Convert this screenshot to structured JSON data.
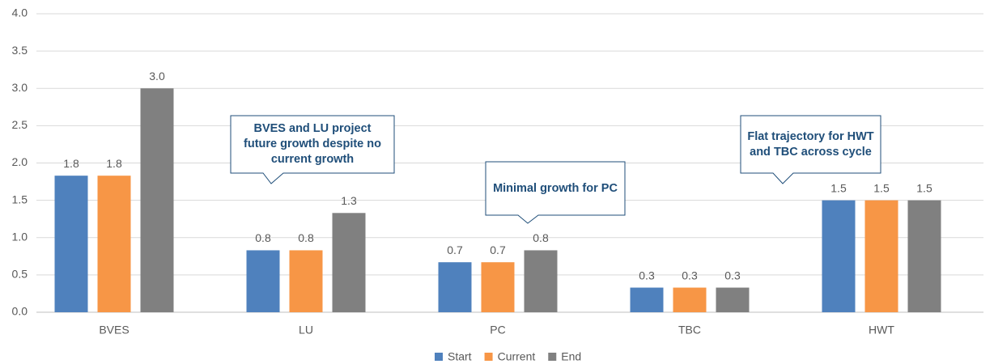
{
  "chart_data": {
    "type": "bar",
    "categories": [
      "BVES",
      "LU",
      "PC",
      "TBC",
      "HWT"
    ],
    "series": [
      {
        "name": "Start",
        "color": "#4f81bd",
        "values": [
          1.83,
          0.83,
          0.67,
          0.33,
          1.5
        ],
        "value_labels": [
          "1.8",
          "0.8",
          "0.7",
          "0.3",
          "1.5"
        ]
      },
      {
        "name": "Current",
        "color": "#f79646",
        "values": [
          1.83,
          0.83,
          0.67,
          0.33,
          1.5
        ],
        "value_labels": [
          "1.8",
          "0.8",
          "0.7",
          "0.3",
          "1.5"
        ]
      },
      {
        "name": "End",
        "color": "#808080",
        "values": [
          3.0,
          1.33,
          0.83,
          0.33,
          1.5
        ],
        "value_labels": [
          "3.0",
          "1.3",
          "0.8",
          "0.3",
          "1.5"
        ]
      }
    ],
    "ylim": [
      0,
      4
    ],
    "yticks": [
      {
        "value": 0,
        "label": "0.0"
      },
      0.5,
      {
        "value": 1,
        "label": "1.0"
      },
      1.5,
      {
        "value": 2,
        "label": "2.0"
      },
      2.5,
      {
        "value": 3,
        "label": "3.0"
      },
      3.5,
      {
        "value": 4,
        "label": "4.0"
      }
    ],
    "grid": true,
    "legend": "bottom",
    "annotations": [
      {
        "text": "BVES and LU project future growth despite no current growth"
      },
      {
        "text": "Minimal growth for PC"
      },
      {
        "text": "Flat trajectory for HWT and TBC across cycle"
      }
    ]
  }
}
